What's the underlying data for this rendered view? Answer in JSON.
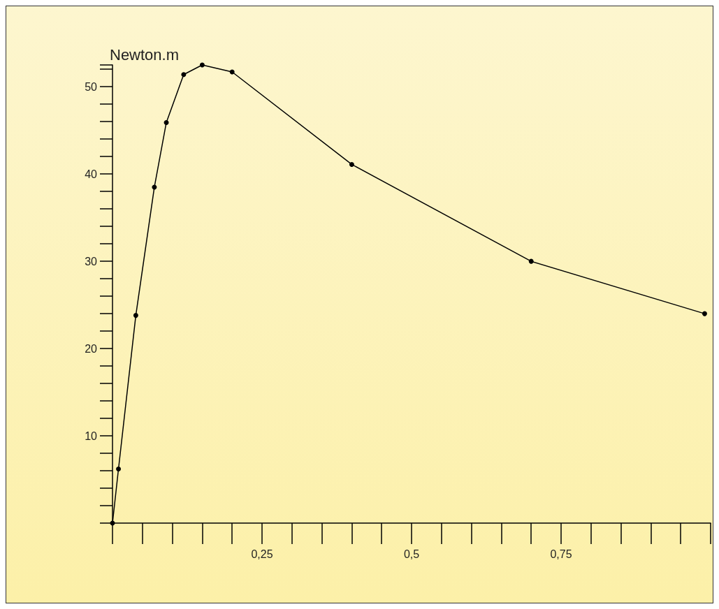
{
  "chart_data": {
    "type": "line",
    "ylabel": "Newton.m",
    "x": [
      0,
      0.01,
      0.039,
      0.07,
      0.09,
      0.119,
      0.15,
      0.2,
      0.4,
      0.7,
      0.99
    ],
    "series": [
      {
        "color": "#000000",
        "values": [
          0,
          6.2,
          23.8,
          38.5,
          45.9,
          51.4,
          52.5,
          51.7,
          41.1,
          30.0,
          24.0
        ]
      }
    ],
    "xlim": [
      0,
      1
    ],
    "xticks": [
      {
        "value": 0.25,
        "label": "0,25"
      },
      {
        "value": 0.5,
        "label": "0,5"
      },
      {
        "value": 0.75,
        "label": "0,75"
      }
    ],
    "ylim": [
      0,
      52.5
    ],
    "yticks": [
      10,
      20,
      30,
      40,
      50
    ],
    "marker": "circle",
    "line_style": "solid",
    "grid": false
  }
}
